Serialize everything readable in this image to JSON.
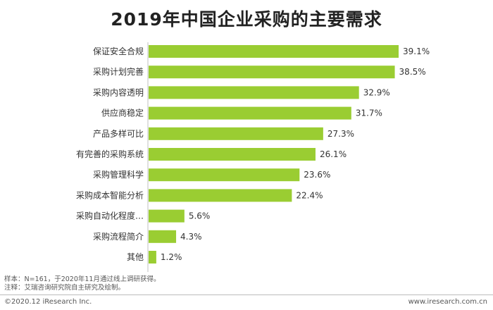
{
  "chart_data": {
    "type": "bar",
    "orientation": "horizontal",
    "title": "2019年中国企业采购的主要需求",
    "categories": [
      "保证安全合规",
      "采购计划完善",
      "采购内容透明",
      "供应商稳定",
      "产品多样可比",
      "有完善的采购系统",
      "采购管理科学",
      "采购成本智能分析",
      "采购自动化程度…",
      "采购流程简介",
      "其他"
    ],
    "values": [
      39.1,
      38.5,
      32.9,
      31.7,
      27.3,
      26.1,
      23.6,
      22.4,
      5.6,
      4.3,
      1.2
    ],
    "value_labels": [
      "39.1%",
      "38.5%",
      "32.9%",
      "31.7%",
      "27.3%",
      "26.1%",
      "23.6%",
      "22.4%",
      "5.6%",
      "4.3%",
      "1.2%"
    ],
    "bar_color": "#9acd32",
    "xlim": [
      0,
      40
    ],
    "grid": false,
    "legend": "none"
  },
  "notes": {
    "sample": "样本：N=161，于2020年11月通过线上调研获得。",
    "note": "注释：艾瑞咨询研究院自主研究及绘制。"
  },
  "footer": {
    "copyright": "©2020.12 iResearch Inc.",
    "website": "www.iresearch.com.cn"
  }
}
